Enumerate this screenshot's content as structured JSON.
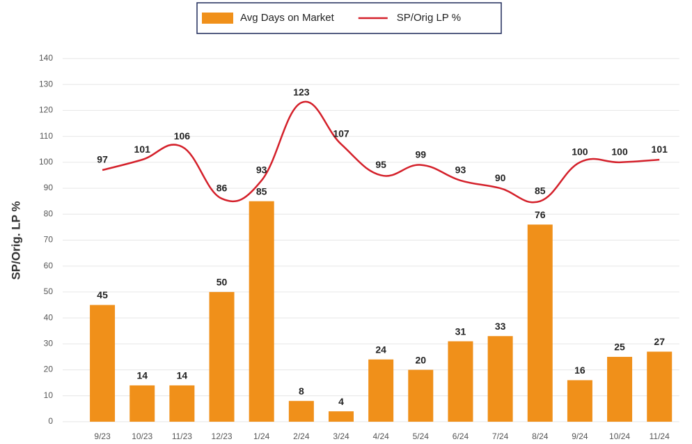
{
  "chart_data": {
    "type": "bar",
    "y_label": "SP/Orig. LP %",
    "categories": [
      "9/23",
      "10/23",
      "11/23",
      "12/23",
      "1/24",
      "2/24",
      "3/24",
      "4/24",
      "5/24",
      "6/24",
      "7/24",
      "8/24",
      "9/24",
      "10/24",
      "11/24"
    ],
    "series": [
      {
        "name": "Avg Days on Market",
        "type": "bar",
        "color": "#f0901a",
        "values": [
          45,
          14,
          14,
          50,
          85,
          8,
          4,
          24,
          20,
          31,
          33,
          76,
          16,
          25,
          27
        ]
      },
      {
        "name": "SP/Orig LP %",
        "type": "line",
        "color": "#d4202a",
        "values": [
          97,
          101,
          106,
          86,
          93,
          123,
          107,
          95,
          99,
          93,
          90,
          85,
          100,
          100,
          101
        ]
      }
    ],
    "ylim": [
      0,
      140
    ],
    "yticks": [
      0,
      10,
      20,
      30,
      40,
      50,
      60,
      70,
      80,
      90,
      100,
      110,
      120,
      130,
      140
    ],
    "grid": true,
    "legend": "top"
  }
}
